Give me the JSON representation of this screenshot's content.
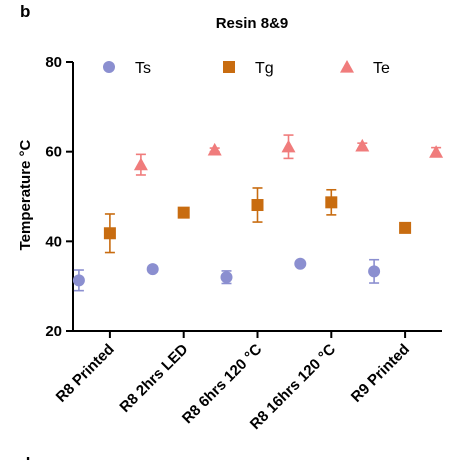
{
  "panel_labels": [
    "b",
    "d"
  ],
  "chart_data": {
    "type": "scatter",
    "title": "Resin 8&9",
    "xlabel": "",
    "ylabel": "Temperature °C",
    "ylim": [
      20,
      80
    ],
    "yticks": [
      20,
      40,
      60,
      80
    ],
    "grid": false,
    "legend_position": "top",
    "categories": [
      "R8 Printed",
      "R8 2hrs LED",
      "R8 6hrs 120 °C",
      "R8 16hrs 120 °C",
      "R9 Printed"
    ],
    "series": [
      {
        "name": "Ts",
        "marker": "circle",
        "color": "#8b8fd0",
        "values": [
          31.3,
          33.8,
          32.0,
          35.0,
          33.3
        ],
        "errors": [
          2.3,
          0.6,
          1.4,
          0.3,
          2.6
        ]
      },
      {
        "name": "Tg",
        "marker": "square",
        "color": "#c86c10",
        "values": [
          41.8,
          46.4,
          48.1,
          48.7,
          43.0
        ],
        "errors": [
          4.3,
          0.4,
          3.8,
          2.8,
          0.3
        ]
      },
      {
        "name": "Te",
        "marker": "triangle",
        "color": "#f07c7c",
        "values": [
          57.1,
          60.4,
          61.1,
          61.3,
          59.9
        ],
        "errors": [
          2.3,
          0.4,
          2.6,
          0.6,
          1.0
        ]
      }
    ]
  }
}
